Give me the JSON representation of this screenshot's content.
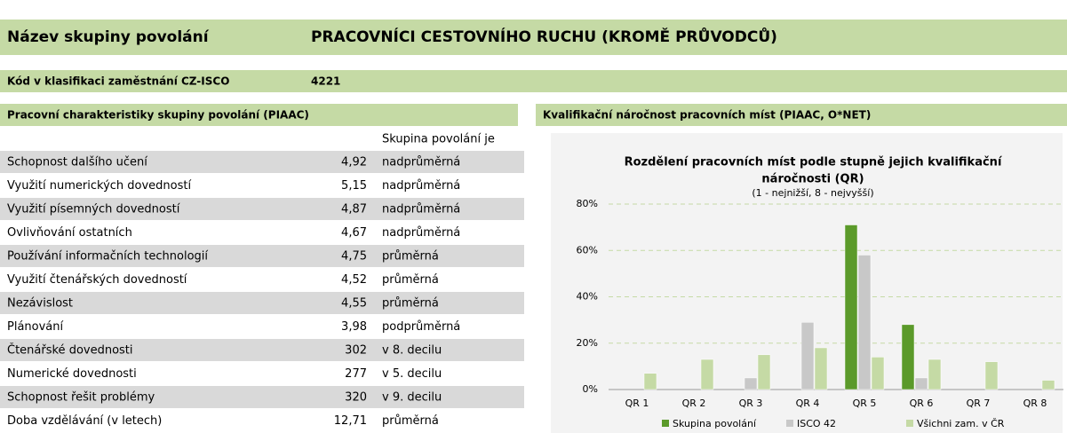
{
  "header": {
    "label": "Název skupiny povolání",
    "title": "PRACOVNÍCI CESTOVNÍHO RUCHU (KROMĚ PRŮVODCŮ)"
  },
  "code": {
    "label": "Kód v klasifikaci zaměstnání CZ-ISCO",
    "value": "4221"
  },
  "table": {
    "title": "Pracovní charakteristiky skupiny povolání (PIAAC)",
    "column_header": "Skupina povolání je",
    "rows": [
      [
        "Schopnost dalšího učení",
        "4,92",
        "nadprůměrná"
      ],
      [
        "Využití numerických dovedností",
        "5,15",
        "nadprůměrná"
      ],
      [
        "Využití písemných dovedností",
        "4,87",
        "nadprůměrná"
      ],
      [
        "Ovlivňování ostatních",
        "4,67",
        "nadprůměrná"
      ],
      [
        "Používání informačních technologií",
        "4,75",
        "průměrná"
      ],
      [
        "Využití čtenářských dovedností",
        "4,52",
        "průměrná"
      ],
      [
        "Nezávislost",
        "4,55",
        "průměrná"
      ],
      [
        "Plánování",
        "3,98",
        "podprůměrná"
      ],
      [
        "Čtenářské dovednosti",
        "302",
        "v 8. decilu"
      ],
      [
        "Numerické dovednosti",
        "277",
        "v 5. decilu"
      ],
      [
        "Schopnost řešit problémy",
        "320",
        "v 9. decilu"
      ],
      [
        "Doba vzdělávání (v letech)",
        "12,71",
        "průměrná"
      ]
    ]
  },
  "chart_section": {
    "title": "Kvalifikační náročnost pracovních míst (PIAAC, O*NET)"
  },
  "chart_data": {
    "type": "bar",
    "title": "Rozdělení pracovních míst podle stupně jejich kvalifikační",
    "title_line2": "náročnosti (QR)",
    "subtitle": "(1 - nejnižší, 8 - nejvyšší)",
    "categories": [
      "QR 1",
      "QR 2",
      "QR 3",
      "QR 4",
      "QR 5",
      "QR 6",
      "QR 7",
      "QR 8"
    ],
    "series": [
      {
        "name": "Skupina povolání",
        "color": "#5b9a2a",
        "values": [
          0,
          0,
          0,
          0,
          71,
          28,
          0,
          0
        ]
      },
      {
        "name": "ISCO 42",
        "color": "#c8c8c8",
        "values": [
          0,
          0,
          5,
          29,
          58,
          5,
          0,
          0
        ]
      },
      {
        "name": "Všichni zam. v ČR",
        "color": "#c5daa5",
        "values": [
          7,
          13,
          15,
          18,
          14,
          13,
          12,
          4
        ]
      }
    ],
    "ylim": [
      0,
      80
    ],
    "yticks": [
      {
        "value": 0,
        "label": "0%"
      },
      {
        "value": 20,
        "label": "20%"
      },
      {
        "value": 40,
        "label": "40%"
      },
      {
        "value": 60,
        "label": "60%"
      },
      {
        "value": 80,
        "label": "80%"
      }
    ],
    "grid": true
  }
}
